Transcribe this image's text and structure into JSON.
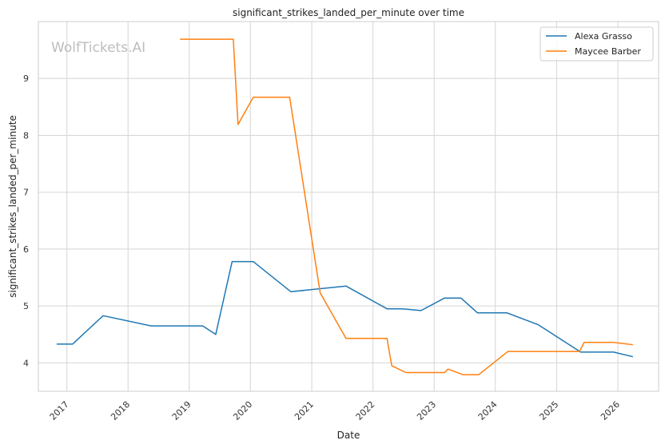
{
  "watermark": "WolfTickets.AI",
  "chart_data": {
    "type": "line",
    "title": "significant_strikes_landed_per_minute over time",
    "xlabel": "Date",
    "ylabel": "significant_strikes_landed_per_minute",
    "x_ticks": [
      "2017",
      "2018",
      "2019",
      "2020",
      "2021",
      "2022",
      "2023",
      "2024",
      "2025",
      "2026"
    ],
    "y_ticks": [
      4,
      5,
      6,
      7,
      8,
      9
    ],
    "xlim": [
      "2016-07-15",
      "2026-09-01"
    ],
    "ylim": [
      3.5,
      10.0
    ],
    "grid": true,
    "legend_position": "top-right",
    "series": [
      {
        "name": "Alexa Grasso",
        "color": "#1f77b4",
        "points": [
          {
            "x": "2016-11-05",
            "y": 4.33
          },
          {
            "x": "2017-02-04",
            "y": 4.33
          },
          {
            "x": "2017-08-05",
            "y": 4.83
          },
          {
            "x": "2018-05-19",
            "y": 4.65
          },
          {
            "x": "2019-03-23",
            "y": 4.65
          },
          {
            "x": "2019-06-08",
            "y": 4.5
          },
          {
            "x": "2019-09-14",
            "y": 5.78
          },
          {
            "x": "2020-01-18",
            "y": 5.78
          },
          {
            "x": "2020-08-29",
            "y": 5.25
          },
          {
            "x": "2021-07-24",
            "y": 5.35
          },
          {
            "x": "2022-03-26",
            "y": 4.95
          },
          {
            "x": "2022-06-25",
            "y": 4.95
          },
          {
            "x": "2022-10-15",
            "y": 4.92
          },
          {
            "x": "2023-03-04",
            "y": 5.14
          },
          {
            "x": "2023-06-10",
            "y": 5.14
          },
          {
            "x": "2023-09-16",
            "y": 4.88
          },
          {
            "x": "2024-03-09",
            "y": 4.88
          },
          {
            "x": "2024-09-14",
            "y": 4.67
          },
          {
            "x": "2025-05-24",
            "y": 4.19
          },
          {
            "x": "2025-12-06",
            "y": 4.19
          },
          {
            "x": "2026-03-28",
            "y": 4.11
          }
        ]
      },
      {
        "name": "Maycee Barber",
        "color": "#ff7f0e",
        "points": [
          {
            "x": "2018-11-10",
            "y": 9.69
          },
          {
            "x": "2019-09-21",
            "y": 9.69
          },
          {
            "x": "2019-10-19",
            "y": 8.19
          },
          {
            "x": "2020-01-18",
            "y": 8.67
          },
          {
            "x": "2020-08-22",
            "y": 8.67
          },
          {
            "x": "2021-02-20",
            "y": 5.23
          },
          {
            "x": "2021-07-24",
            "y": 4.43
          },
          {
            "x": "2022-03-26",
            "y": 4.43
          },
          {
            "x": "2022-04-23",
            "y": 3.95
          },
          {
            "x": "2022-07-16",
            "y": 3.83
          },
          {
            "x": "2023-03-04",
            "y": 3.83
          },
          {
            "x": "2023-03-25",
            "y": 3.89
          },
          {
            "x": "2023-06-24",
            "y": 3.79
          },
          {
            "x": "2023-09-23",
            "y": 3.79
          },
          {
            "x": "2024-03-16",
            "y": 4.2
          },
          {
            "x": "2025-05-17",
            "y": 4.2
          },
          {
            "x": "2025-06-14",
            "y": 4.36
          },
          {
            "x": "2025-12-06",
            "y": 4.36
          },
          {
            "x": "2026-03-28",
            "y": 4.32
          }
        ]
      }
    ]
  }
}
